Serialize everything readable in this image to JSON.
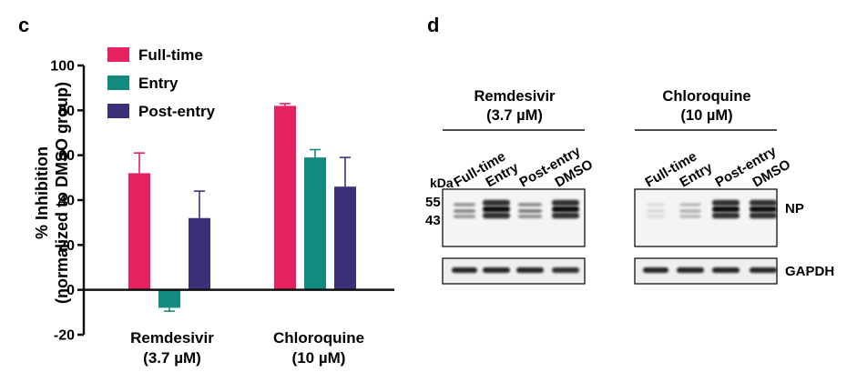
{
  "panel_c_label": "c",
  "panel_d_label": "d",
  "chart_data": {
    "type": "bar",
    "ylabel_line1": "% Inhibition",
    "ylabel_line2": "(normalized to DMSO group)",
    "ylim": [
      -20,
      100
    ],
    "yticks": [
      -20,
      0,
      20,
      40,
      60,
      80,
      100
    ],
    "groups": [
      {
        "name": "Remdesivir",
        "sub": "(3.7 µM)"
      },
      {
        "name": "Chloroquine",
        "sub": "(10 µM)"
      }
    ],
    "series": [
      {
        "name": "Full-time",
        "color": "#e6215f",
        "values": [
          52,
          82
        ],
        "errors": [
          9,
          1
        ]
      },
      {
        "name": "Entry",
        "color": "#128a80",
        "values": [
          -8,
          59
        ],
        "errors": [
          1.5,
          3.5
        ]
      },
      {
        "name": "Post-entry",
        "color": "#3c2f77",
        "values": [
          32,
          46
        ],
        "errors": [
          12,
          13
        ]
      }
    ],
    "legend_position": "top-left"
  },
  "blot": {
    "kda_label": "kDa",
    "markers": [
      "55",
      "43"
    ],
    "np_label": "NP",
    "gapdh_label": "GAPDH",
    "lanes": [
      "Full-time",
      "Entry",
      "Post-entry",
      "DMSO"
    ],
    "panels": [
      {
        "title_line1": "Remdesivir",
        "title_line2": "(3.7 µM)",
        "np_intensity": [
          0.55,
          1.0,
          0.6,
          1.0
        ],
        "gapdh_intensity": [
          0.9,
          0.9,
          0.9,
          0.85
        ]
      },
      {
        "title_line1": "Chloroquine",
        "title_line2": "(10 µM)",
        "np_intensity": [
          0.12,
          0.3,
          1.0,
          1.0
        ],
        "gapdh_intensity": [
          0.9,
          0.9,
          0.9,
          0.9
        ]
      }
    ]
  }
}
